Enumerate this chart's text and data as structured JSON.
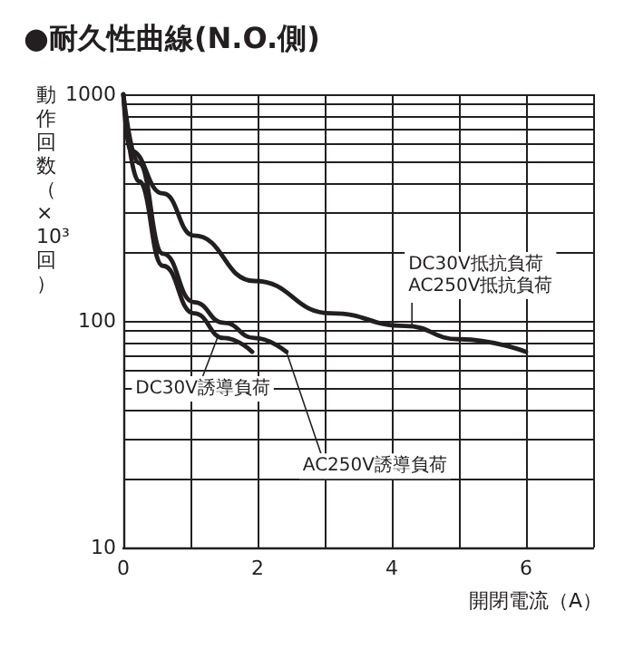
{
  "chart_data": {
    "type": "line",
    "title": "●耐久性曲線(N.O.側)",
    "xlabel": "開閉電流（A）",
    "ylabel": "動作回数（×10³回）",
    "log": "y",
    "grid": true,
    "marker": "none",
    "line_style": "solid",
    "xlim": [
      0,
      7
    ],
    "xticks": [
      0,
      {
        "value": 1,
        "label": null
      },
      2,
      {
        "value": 3,
        "label": null
      },
      4,
      {
        "value": 5,
        "label": null
      },
      6,
      {
        "value": 7,
        "label": null
      }
    ],
    "ylim": [
      10,
      1000
    ],
    "yticks": [
      10,
      {
        "value": 20,
        "label": null
      },
      {
        "value": 30,
        "label": null
      },
      {
        "value": 40,
        "label": null
      },
      {
        "value": 50,
        "label": null
      },
      {
        "value": 60,
        "label": null
      },
      {
        "value": 70,
        "label": null
      },
      {
        "value": 80,
        "label": null
      },
      {
        "value": 90,
        "label": null
      },
      100,
      {
        "value": 200,
        "label": null
      },
      {
        "value": 300,
        "label": null
      },
      {
        "value": 400,
        "label": null
      },
      {
        "value": 500,
        "label": null
      },
      {
        "value": 600,
        "label": null
      },
      {
        "value": 700,
        "label": null
      },
      {
        "value": 800,
        "label": null
      },
      {
        "value": 900,
        "label": null
      },
      1000
    ],
    "series": [
      {
        "color": "#231f20",
        "x": [
          0,
          0.1,
          0.59,
          1.05,
          1.95,
          3.1,
          4.2,
          5.0,
          6.0
        ],
        "values": [
          1000,
          565,
          365,
          238,
          150,
          108,
          95,
          83,
          73
        ]
      },
      {
        "color": "#231f20",
        "x": [
          0,
          0.23,
          0.59,
          1.05,
          1.5,
          1.95,
          2.43
        ],
        "values": [
          1000,
          497,
          198,
          121,
          98,
          84,
          73
        ]
      },
      {
        "color": "#231f20",
        "x": [
          0,
          0.23,
          0.59,
          1.05,
          1.5,
          1.92
        ],
        "values": [
          1000,
          413,
          175,
          108,
          84,
          73
        ]
      }
    ],
    "annotations": [
      {
        "text": "DC30V抵抗負荷\nAC250V抵抗負荷",
        "x": 4.3,
        "y": 93
      },
      {
        "text": "DC30V誘導負荷",
        "x": 1.4,
        "y": 84
      },
      {
        "text": "AC250V誘導負荷",
        "x": 2.43,
        "y": 73
      }
    ]
  }
}
